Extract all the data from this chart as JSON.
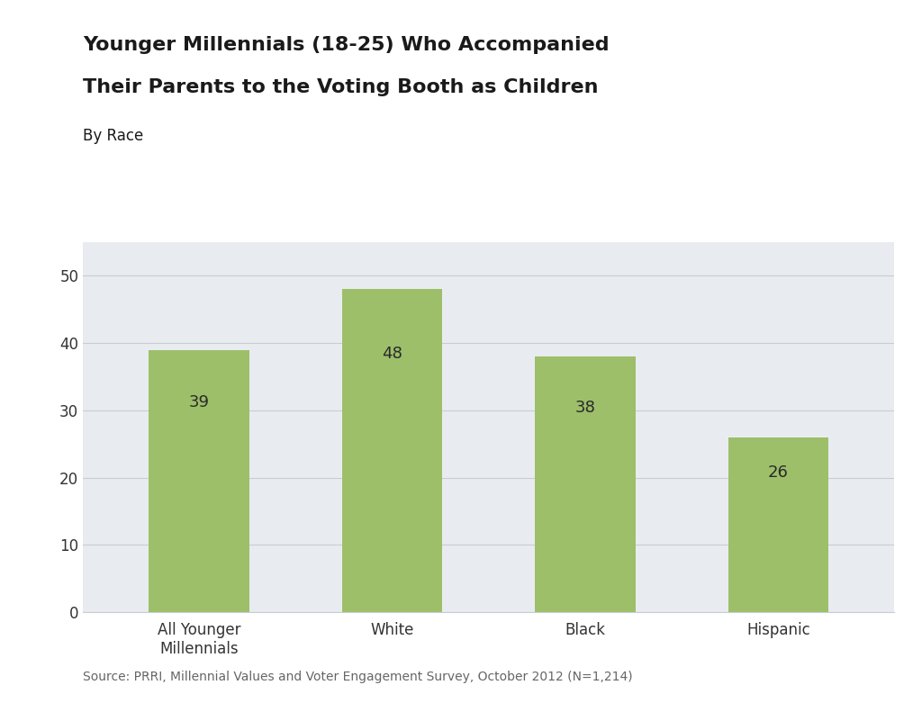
{
  "title_line1": "Younger Millennials (18-25) Who Accompanied",
  "title_line2": "Their Parents to the Voting Booth as Children",
  "subtitle": "By Race",
  "categories": [
    "All Younger\nMillennials",
    "White",
    "Black",
    "Hispanic"
  ],
  "values": [
    39,
    48,
    38,
    26
  ],
  "bar_color": "#9dbf6a",
  "ylim": [
    0,
    55
  ],
  "yticks": [
    0,
    10,
    20,
    30,
    40,
    50
  ],
  "background_color": "#e8ecf0",
  "figure_background": "#ffffff",
  "source_text": "Source: PRRI, Millennial Values and Voter Engagement Survey, October 2012 (N=1,214)",
  "title_fontsize": 16,
  "subtitle_fontsize": 12,
  "tick_fontsize": 12,
  "source_fontsize": 10,
  "value_fontsize": 13,
  "bar_width": 0.52
}
